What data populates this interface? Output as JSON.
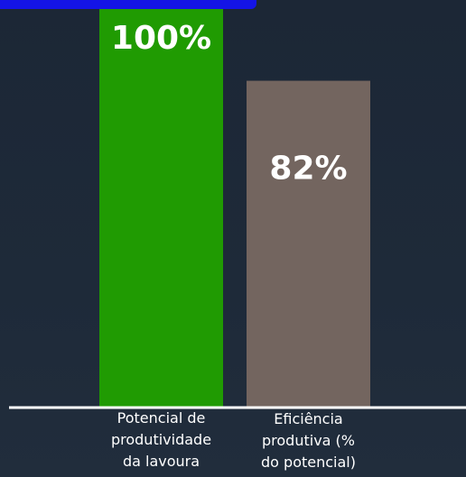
{
  "header": {
    "accent_color": "#1414e6"
  },
  "chart_data": {
    "type": "bar",
    "categories": [
      "Potencial de\nprodutividade\nda lavoura",
      "Eficiência\nprodutiva (%\ndo potencial)"
    ],
    "values": [
      100,
      82
    ],
    "data_labels": [
      "100%",
      "82%"
    ],
    "colors": [
      "#209b02",
      "#73655f"
    ],
    "ylim": [
      0,
      100
    ],
    "grid": false,
    "legend": "none"
  }
}
